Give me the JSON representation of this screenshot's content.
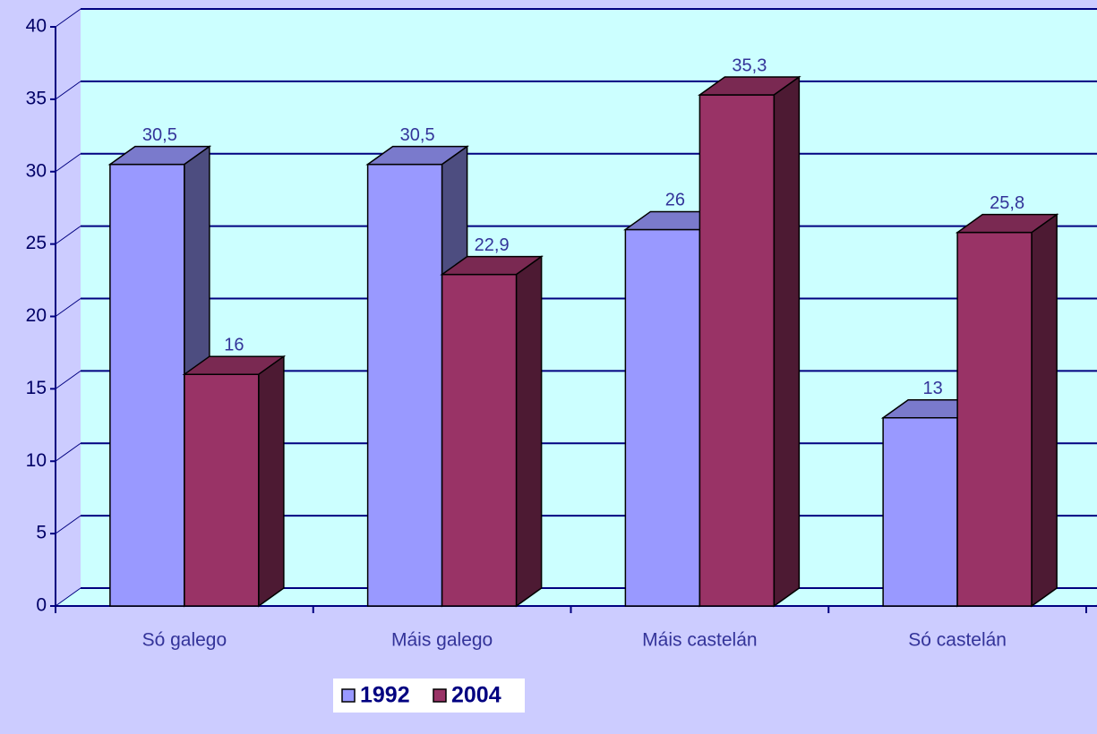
{
  "chart_data": {
    "type": "bar3d",
    "categories": [
      "Só galego",
      "Máis galego",
      "Máis castelán",
      "Só castelán"
    ],
    "series": [
      {
        "name": "1992",
        "color": "#9999ff",
        "values": [
          30.5,
          30.5,
          26,
          13
        ],
        "value_labels": [
          "30,5",
          "30,5",
          "26",
          "13"
        ]
      },
      {
        "name": "2004",
        "color": "#993366",
        "values": [
          16,
          22.9,
          35.3,
          25.8
        ],
        "value_labels": [
          "16",
          "22,9",
          "35,3",
          "25,8"
        ]
      }
    ],
    "ylim": [
      0,
      40
    ],
    "yticks": [
      0,
      5,
      10,
      15,
      20,
      25,
      30,
      35,
      40
    ],
    "grid": true,
    "legend": "bottom"
  }
}
